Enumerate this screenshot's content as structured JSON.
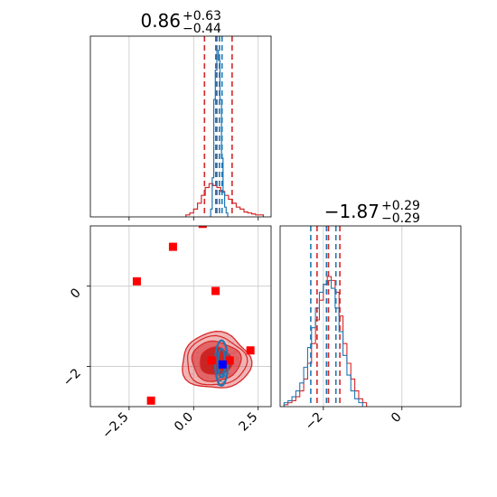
{
  "colors": {
    "red": "#d62728",
    "blue": "#1f77b4",
    "marker_red": "#ff0000",
    "marker_blue": "#0000ff",
    "grid": "#c8c8c8"
  },
  "chart_data": [
    {
      "type": "histogram",
      "panel": "p1-marginal",
      "title": {
        "value": "0.86",
        "plus": "+0.63",
        "minus": "−0.44"
      },
      "xlim": [
        -4.0,
        3.0
      ],
      "grid": true,
      "series": [
        {
          "color": "red",
          "bins": [
            -0.3,
            -0.15,
            0.0,
            0.15,
            0.3,
            0.45,
            0.6,
            0.75,
            0.9,
            1.05,
            1.2,
            1.35,
            1.5,
            1.65,
            1.8,
            1.95,
            2.1,
            2.25,
            2.4,
            2.55,
            2.7
          ],
          "counts": [
            2,
            4,
            8,
            14,
            22,
            30,
            34,
            32,
            30,
            26,
            22,
            18,
            14,
            10,
            8,
            5,
            4,
            3,
            2,
            2
          ],
          "quantiles": [
            0.42,
            0.86,
            1.49
          ]
        },
        {
          "color": "blue",
          "bins": [
            0.66,
            0.72,
            0.78,
            0.84,
            0.9,
            0.96,
            1.02,
            1.08,
            1.14,
            1.2,
            1.26,
            1.32
          ],
          "counts": [
            8,
            40,
            120,
            150,
            170,
            160,
            120,
            60,
            25,
            10,
            4
          ],
          "quantiles": [
            0.9,
            1.0,
            1.1
          ]
        }
      ]
    },
    {
      "type": "scatter",
      "panel": "p1-vs-p2",
      "xlim": [
        -4.0,
        3.0
      ],
      "ylim": [
        -3.0,
        1.5
      ],
      "xticks": [
        "−2.5",
        "0.0",
        "2.5"
      ],
      "xtick_values": [
        -2.5,
        0.0,
        2.5
      ],
      "yticks": [
        "−2",
        "0"
      ],
      "ytick_values": [
        -2,
        0
      ],
      "grid": true,
      "contour_center": [
        0.86,
        -1.87
      ],
      "red_points": [
        [
          -2.2,
          0.12
        ],
        [
          -0.8,
          0.98
        ],
        [
          0.35,
          1.55
        ],
        [
          0.85,
          -0.12
        ],
        [
          -1.65,
          -2.85
        ],
        [
          2.2,
          -1.6
        ],
        [
          0.7,
          -1.85
        ],
        [
          1.4,
          -1.85
        ]
      ],
      "blue_point": [
        1.12,
        -1.95
      ]
    },
    {
      "type": "histogram",
      "panel": "p2-marginal",
      "title": {
        "value": "−1.87",
        "plus": "+0.29",
        "minus": "−0.29"
      },
      "xlim": [
        -3.1,
        1.5
      ],
      "xticks": [
        "−2",
        "0"
      ],
      "xtick_values": [
        -2,
        0
      ],
      "grid": true,
      "series": [
        {
          "color": "red",
          "bins": [
            -3.0,
            -2.9,
            -2.8,
            -2.7,
            -2.6,
            -2.5,
            -2.4,
            -2.3,
            -2.2,
            -2.1,
            -2.0,
            -1.9,
            -1.8,
            -1.7,
            -1.6,
            -1.5,
            -1.4,
            -1.3,
            -1.2,
            -1.1,
            -1.0,
            -0.9
          ],
          "counts": [
            1,
            2,
            3,
            5,
            8,
            14,
            22,
            32,
            44,
            54,
            62,
            66,
            64,
            58,
            46,
            32,
            22,
            14,
            8,
            4,
            2
          ],
          "quantiles": [
            -2.16,
            -1.87,
            -1.58
          ]
        },
        {
          "color": "blue",
          "bins": [
            -3.0,
            -2.9,
            -2.8,
            -2.7,
            -2.6,
            -2.5,
            -2.4,
            -2.3,
            -2.2,
            -2.1,
            -2.0,
            -1.9,
            -1.8,
            -1.7,
            -1.6,
            -1.5,
            -1.4,
            -1.3,
            -1.2,
            -1.1,
            -1.0
          ],
          "counts": [
            2,
            3,
            5,
            8,
            12,
            20,
            30,
            40,
            50,
            58,
            62,
            64,
            60,
            50,
            38,
            26,
            16,
            8,
            4,
            2
          ],
          "quantiles": [
            -2.32,
            -1.92,
            -1.68
          ]
        }
      ]
    }
  ]
}
